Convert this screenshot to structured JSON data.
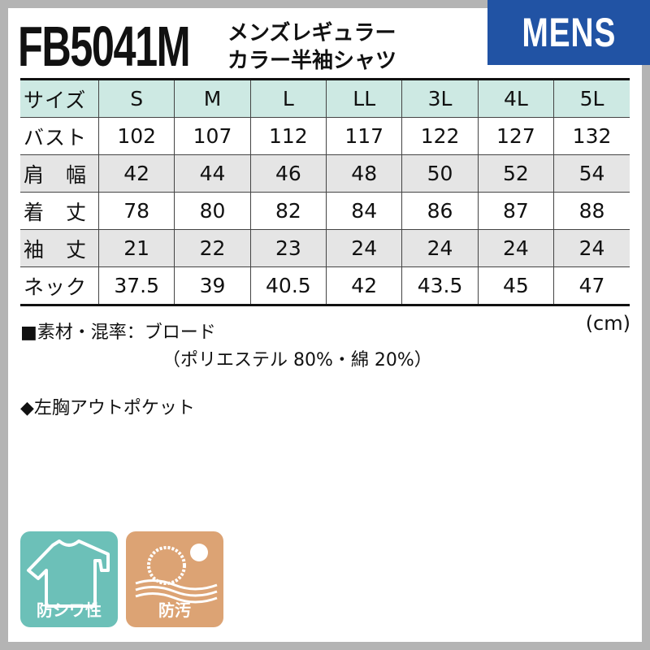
{
  "header": {
    "model": "FB5041M",
    "subtitle_line1": "メンズレギュラー",
    "subtitle_line2": "カラー半袖シャツ",
    "category_badge": "MENS",
    "category_color": "#2153a4"
  },
  "table": {
    "columns": [
      "サイズ",
      "S",
      "M",
      "L",
      "LL",
      "3L",
      "4L",
      "5L"
    ],
    "rows": [
      {
        "label": "バスト",
        "values": [
          "102",
          "107",
          "112",
          "117",
          "122",
          "127",
          "132"
        ]
      },
      {
        "label": "肩　幅",
        "values": [
          "42",
          "44",
          "46",
          "48",
          "50",
          "52",
          "54"
        ]
      },
      {
        "label": "着　丈",
        "values": [
          "78",
          "80",
          "82",
          "84",
          "86",
          "87",
          "88"
        ]
      },
      {
        "label": "袖　丈",
        "values": [
          "21",
          "22",
          "23",
          "24",
          "24",
          "24",
          "24"
        ]
      },
      {
        "label": "ネック",
        "values": [
          "37.5",
          "39",
          "40.5",
          "42",
          "43.5",
          "45",
          "47"
        ]
      }
    ],
    "unit": "(cm)",
    "header_color": "#cde9e3"
  },
  "notes": {
    "material": "■素材・混率：ブロード",
    "material_detail": "（ポリエステル 80%・綿 20%）",
    "pocket": "◆左胸アウトポケット"
  },
  "features": [
    {
      "label": "防シワ性",
      "icon": "shirt-icon",
      "color": "#6cc0b8"
    },
    {
      "label": "防汚",
      "icon": "stain-guard-icon",
      "color": "#dca374"
    }
  ]
}
